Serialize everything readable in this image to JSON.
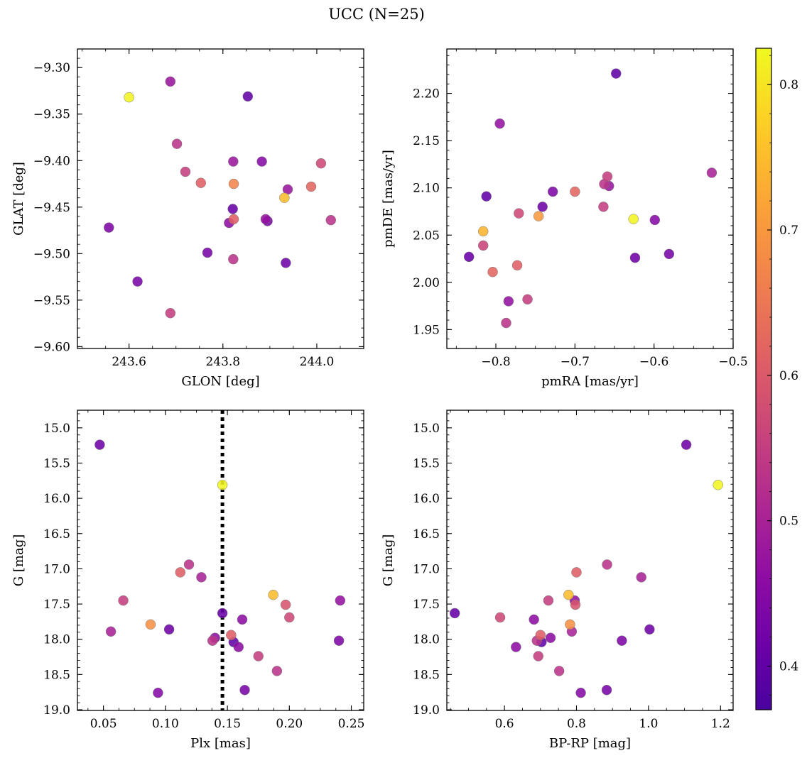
{
  "figure": {
    "title": "UCC (N=25)"
  },
  "colorbar": {
    "cmap": "plasma",
    "range": [
      0.37,
      0.825
    ],
    "ticks": [
      0.4,
      0.5,
      0.6,
      0.7,
      0.8
    ],
    "tick_labels": [
      "0.4",
      "0.5",
      "0.6",
      "0.7",
      "0.8"
    ]
  },
  "chart_data": [
    {
      "type": "scatter",
      "id": "glon-glat",
      "xlabel": "GLON [deg]",
      "ylabel": "GLAT [deg]",
      "xlim": [
        243.49,
        244.1
      ],
      "ylim": [
        -9.602,
        -9.28
      ],
      "xticks": [
        243.6,
        243.8,
        244.0
      ],
      "xtick_labels": [
        "243.6",
        "243.8",
        "244.0"
      ],
      "yticks": [
        -9.6,
        -9.55,
        -9.5,
        -9.45,
        -9.4,
        -9.35,
        -9.3
      ],
      "ytick_labels": [
        "−9.60",
        "−9.55",
        "−9.50",
        "−9.45",
        "−9.40",
        "−9.35",
        "−9.30"
      ],
      "points": [
        {
          "x": 243.6,
          "y": -9.332,
          "c": 0.82
        },
        {
          "x": 243.688,
          "y": -9.315,
          "c": 0.48
        },
        {
          "x": 243.853,
          "y": -9.331,
          "c": 0.4
        },
        {
          "x": 243.702,
          "y": -9.382,
          "c": 0.53
        },
        {
          "x": 243.72,
          "y": -9.412,
          "c": 0.55
        },
        {
          "x": 243.822,
          "y": -9.401,
          "c": 0.48
        },
        {
          "x": 243.883,
          "y": -9.401,
          "c": 0.45
        },
        {
          "x": 244.009,
          "y": -9.403,
          "c": 0.57
        },
        {
          "x": 243.753,
          "y": -9.424,
          "c": 0.61
        },
        {
          "x": 243.823,
          "y": -9.425,
          "c": 0.67
        },
        {
          "x": 243.988,
          "y": -9.428,
          "c": 0.62
        },
        {
          "x": 243.938,
          "y": -9.431,
          "c": 0.48
        },
        {
          "x": 243.931,
          "y": -9.44,
          "c": 0.75
        },
        {
          "x": 243.821,
          "y": -9.452,
          "c": 0.41
        },
        {
          "x": 243.823,
          "y": -9.463,
          "c": 0.61
        },
        {
          "x": 243.813,
          "y": -9.467,
          "c": 0.46
        },
        {
          "x": 243.891,
          "y": -9.463,
          "c": 0.47
        },
        {
          "x": 243.895,
          "y": -9.465,
          "c": 0.43
        },
        {
          "x": 244.03,
          "y": -9.464,
          "c": 0.53
        },
        {
          "x": 243.557,
          "y": -9.472,
          "c": 0.44
        },
        {
          "x": 243.767,
          "y": -9.499,
          "c": 0.43
        },
        {
          "x": 243.822,
          "y": -9.506,
          "c": 0.53
        },
        {
          "x": 243.934,
          "y": -9.51,
          "c": 0.42
        },
        {
          "x": 243.618,
          "y": -9.53,
          "c": 0.43
        },
        {
          "x": 243.688,
          "y": -9.564,
          "c": 0.55
        }
      ]
    },
    {
      "type": "scatter",
      "id": "pmra-pmde",
      "xlabel": "pmRA [mas/yr]",
      "ylabel": "pmDE [mas/yr]",
      "xlim": [
        -0.862,
        -0.5
      ],
      "ylim": [
        1.93,
        2.247
      ],
      "xticks": [
        -0.8,
        -0.7,
        -0.6,
        -0.5
      ],
      "xtick_labels": [
        "−0.8",
        "−0.7",
        "−0.6",
        "−0.5"
      ],
      "yticks": [
        1.95,
        2.0,
        2.05,
        2.1,
        2.15,
        2.2
      ],
      "ytick_labels": [
        "1.95",
        "2.00",
        "2.05",
        "2.10",
        "2.15",
        "2.20"
      ],
      "points": [
        {
          "x": -0.648,
          "y": 2.221,
          "c": 0.4
        },
        {
          "x": -0.795,
          "y": 2.168,
          "c": 0.47
        },
        {
          "x": -0.527,
          "y": 2.116,
          "c": 0.5
        },
        {
          "x": -0.659,
          "y": 2.112,
          "c": 0.55
        },
        {
          "x": -0.663,
          "y": 2.104,
          "c": 0.53
        },
        {
          "x": -0.657,
          "y": 2.102,
          "c": 0.48
        },
        {
          "x": -0.7,
          "y": 2.096,
          "c": 0.62
        },
        {
          "x": -0.728,
          "y": 2.096,
          "c": 0.44
        },
        {
          "x": -0.812,
          "y": 2.091,
          "c": 0.4
        },
        {
          "x": -0.741,
          "y": 2.08,
          "c": 0.42
        },
        {
          "x": -0.664,
          "y": 2.08,
          "c": 0.55
        },
        {
          "x": -0.771,
          "y": 2.073,
          "c": 0.57
        },
        {
          "x": -0.746,
          "y": 2.07,
          "c": 0.7
        },
        {
          "x": -0.626,
          "y": 2.067,
          "c": 0.82
        },
        {
          "x": -0.599,
          "y": 2.066,
          "c": 0.45
        },
        {
          "x": -0.816,
          "y": 2.054,
          "c": 0.74
        },
        {
          "x": -0.816,
          "y": 2.039,
          "c": 0.56
        },
        {
          "x": -0.834,
          "y": 2.027,
          "c": 0.41
        },
        {
          "x": -0.624,
          "y": 2.026,
          "c": 0.42
        },
        {
          "x": -0.581,
          "y": 2.03,
          "c": 0.43
        },
        {
          "x": -0.773,
          "y": 2.018,
          "c": 0.61
        },
        {
          "x": -0.804,
          "y": 2.011,
          "c": 0.62
        },
        {
          "x": -0.784,
          "y": 1.98,
          "c": 0.47
        },
        {
          "x": -0.76,
          "y": 1.982,
          "c": 0.55
        },
        {
          "x": -0.787,
          "y": 1.957,
          "c": 0.53
        }
      ]
    },
    {
      "type": "scatter",
      "id": "plx-g",
      "xlabel": "Plx [mas]",
      "ylabel": "G [mag]",
      "xlim": [
        0.029,
        0.26
      ],
      "ylim": [
        19.01,
        14.75
      ],
      "invert_y": true,
      "xticks": [
        0.05,
        0.1,
        0.15,
        0.2,
        0.25
      ],
      "xtick_labels": [
        "0.05",
        "0.10",
        "0.15",
        "0.20",
        "0.25"
      ],
      "yticks": [
        15.0,
        15.5,
        16.0,
        16.5,
        17.0,
        17.5,
        18.0,
        18.5,
        19.0
      ],
      "ytick_labels": [
        "15.0",
        "15.5",
        "16.0",
        "16.5",
        "17.0",
        "17.5",
        "18.0",
        "18.5",
        "19.0"
      ],
      "vline": 0.146,
      "points": [
        {
          "x": 0.047,
          "y": 15.24,
          "c": 0.42
        },
        {
          "x": 0.146,
          "y": 15.81,
          "c": 0.82
        },
        {
          "x": 0.119,
          "y": 16.94,
          "c": 0.53
        },
        {
          "x": 0.112,
          "y": 17.05,
          "c": 0.61
        },
        {
          "x": 0.129,
          "y": 17.12,
          "c": 0.5
        },
        {
          "x": 0.066,
          "y": 17.45,
          "c": 0.55
        },
        {
          "x": 0.187,
          "y": 17.37,
          "c": 0.75
        },
        {
          "x": 0.241,
          "y": 17.45,
          "c": 0.47
        },
        {
          "x": 0.197,
          "y": 17.51,
          "c": 0.59
        },
        {
          "x": 0.146,
          "y": 17.63,
          "c": 0.41
        },
        {
          "x": 0.2,
          "y": 17.69,
          "c": 0.57
        },
        {
          "x": 0.162,
          "y": 17.72,
          "c": 0.46
        },
        {
          "x": 0.088,
          "y": 17.79,
          "c": 0.69
        },
        {
          "x": 0.103,
          "y": 17.86,
          "c": 0.42
        },
        {
          "x": 0.056,
          "y": 17.89,
          "c": 0.5
        },
        {
          "x": 0.153,
          "y": 17.94,
          "c": 0.61
        },
        {
          "x": 0.14,
          "y": 17.98,
          "c": 0.46
        },
        {
          "x": 0.138,
          "y": 18.02,
          "c": 0.53
        },
        {
          "x": 0.155,
          "y": 18.04,
          "c": 0.4
        },
        {
          "x": 0.24,
          "y": 18.02,
          "c": 0.44
        },
        {
          "x": 0.159,
          "y": 18.11,
          "c": 0.46
        },
        {
          "x": 0.175,
          "y": 18.24,
          "c": 0.55
        },
        {
          "x": 0.19,
          "y": 18.45,
          "c": 0.53
        },
        {
          "x": 0.094,
          "y": 18.76,
          "c": 0.45
        },
        {
          "x": 0.164,
          "y": 18.72,
          "c": 0.43
        }
      ]
    },
    {
      "type": "scatter",
      "id": "bprp-g",
      "xlabel": "BP-RP [mag]",
      "ylabel": "G [mag]",
      "xlim": [
        0.44,
        1.235
      ],
      "ylim": [
        19.01,
        14.75
      ],
      "invert_y": true,
      "xticks": [
        0.6,
        0.8,
        1.0,
        1.2
      ],
      "xtick_labels": [
        "0.6",
        "0.8",
        "1.0",
        "1.2"
      ],
      "yticks": [
        15.0,
        15.5,
        16.0,
        16.5,
        17.0,
        17.5,
        18.0,
        18.5,
        19.0
      ],
      "ytick_labels": [
        "15.0",
        "15.5",
        "16.0",
        "16.5",
        "17.0",
        "17.5",
        "18.0",
        "18.5",
        "19.0"
      ],
      "points": [
        {
          "x": 1.105,
          "y": 15.24,
          "c": 0.42
        },
        {
          "x": 1.193,
          "y": 15.81,
          "c": 0.82
        },
        {
          "x": 0.885,
          "y": 16.94,
          "c": 0.53
        },
        {
          "x": 0.8,
          "y": 17.05,
          "c": 0.61
        },
        {
          "x": 0.98,
          "y": 17.12,
          "c": 0.5
        },
        {
          "x": 0.722,
          "y": 17.45,
          "c": 0.55
        },
        {
          "x": 0.778,
          "y": 17.37,
          "c": 0.75
        },
        {
          "x": 0.795,
          "y": 17.45,
          "c": 0.47
        },
        {
          "x": 0.797,
          "y": 17.51,
          "c": 0.59
        },
        {
          "x": 0.462,
          "y": 17.63,
          "c": 0.41
        },
        {
          "x": 0.588,
          "y": 17.69,
          "c": 0.57
        },
        {
          "x": 0.682,
          "y": 17.72,
          "c": 0.46
        },
        {
          "x": 0.782,
          "y": 17.79,
          "c": 0.69
        },
        {
          "x": 1.003,
          "y": 17.86,
          "c": 0.42
        },
        {
          "x": 0.787,
          "y": 17.89,
          "c": 0.5
        },
        {
          "x": 0.7,
          "y": 17.94,
          "c": 0.61
        },
        {
          "x": 0.728,
          "y": 17.98,
          "c": 0.46
        },
        {
          "x": 0.69,
          "y": 18.02,
          "c": 0.53
        },
        {
          "x": 0.703,
          "y": 18.04,
          "c": 0.4
        },
        {
          "x": 0.926,
          "y": 18.02,
          "c": 0.44
        },
        {
          "x": 0.632,
          "y": 18.11,
          "c": 0.46
        },
        {
          "x": 0.694,
          "y": 18.24,
          "c": 0.55
        },
        {
          "x": 0.752,
          "y": 18.45,
          "c": 0.53
        },
        {
          "x": 0.812,
          "y": 18.76,
          "c": 0.45
        },
        {
          "x": 0.884,
          "y": 18.72,
          "c": 0.43
        }
      ]
    }
  ]
}
